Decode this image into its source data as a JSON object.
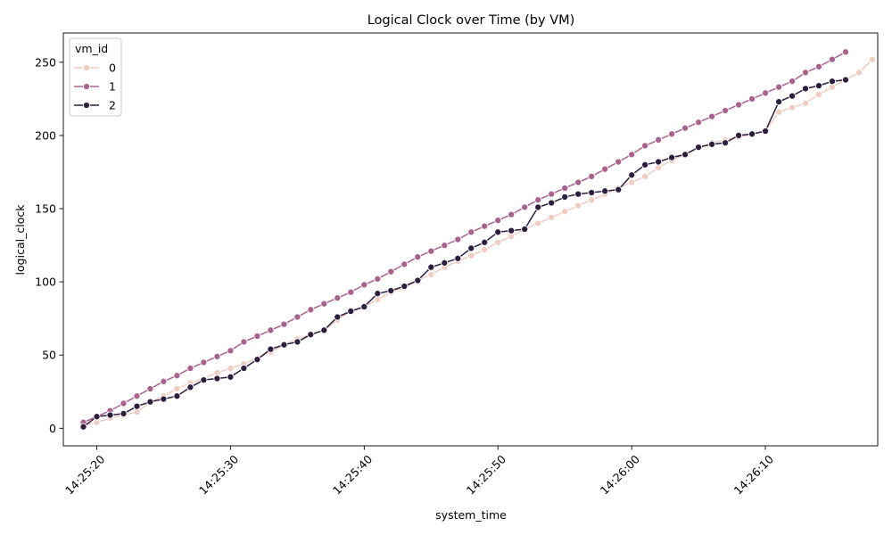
{
  "chart_data": {
    "type": "line",
    "title": "Logical Clock over Time (by VM)",
    "xlabel": "system_time",
    "ylabel": "logical_clock",
    "x_axis": "time",
    "x_ticks": [
      "14:25:20",
      "14:25:30",
      "14:25:40",
      "14:25:50",
      "14:26:00",
      "14:26:10"
    ],
    "x_range": [
      "14:25:17.5",
      "14:26:18.4"
    ],
    "ylim": [
      -12,
      270
    ],
    "y_ticks": [
      0,
      50,
      100,
      150,
      200,
      250
    ],
    "legend": {
      "title": "vm_id",
      "placement": "top-left"
    },
    "grid": false,
    "markers": true,
    "series": [
      {
        "name": "0",
        "color": "#f0cdc2",
        "points": [
          [
            "14:25:19.0",
            2
          ],
          [
            "14:25:20.0",
            4
          ],
          [
            "14:25:21.0",
            7
          ],
          [
            "14:25:22.0",
            9
          ],
          [
            "14:25:23.0",
            11
          ],
          [
            "14:25:24.0",
            18
          ],
          [
            "14:25:25.0",
            22
          ],
          [
            "14:25:26.0",
            27
          ],
          [
            "14:25:27.0",
            31
          ],
          [
            "14:25:28.0",
            34
          ],
          [
            "14:25:29.0",
            38
          ],
          [
            "14:25:30.0",
            41
          ],
          [
            "14:25:31.0",
            44
          ],
          [
            "14:25:32.0",
            48
          ],
          [
            "14:25:33.0",
            52
          ],
          [
            "14:25:34.0",
            57
          ],
          [
            "14:25:35.0",
            61
          ],
          [
            "14:25:36.0",
            64
          ],
          [
            "14:25:37.0",
            67
          ],
          [
            "14:25:38.0",
            74
          ],
          [
            "14:25:39.0",
            80
          ],
          [
            "14:25:40.0",
            83
          ],
          [
            "14:25:41.0",
            88
          ],
          [
            "14:25:42.0",
            93
          ],
          [
            "14:25:43.0",
            96
          ],
          [
            "14:25:44.0",
            101
          ],
          [
            "14:25:45.0",
            105
          ],
          [
            "14:25:46.0",
            110
          ],
          [
            "14:25:47.0",
            114
          ],
          [
            "14:25:48.0",
            118
          ],
          [
            "14:25:49.0",
            122
          ],
          [
            "14:25:50.0",
            127
          ],
          [
            "14:25:51.0",
            131
          ],
          [
            "14:25:52.0",
            136
          ],
          [
            "14:25:53.0",
            140
          ],
          [
            "14:25:54.0",
            144
          ],
          [
            "14:25:55.0",
            148
          ],
          [
            "14:25:56.0",
            152
          ],
          [
            "14:25:57.0",
            156
          ],
          [
            "14:25:58.0",
            160
          ],
          [
            "14:25:59.0",
            164
          ],
          [
            "14:26:00.0",
            168
          ],
          [
            "14:26:01.0",
            172
          ],
          [
            "14:26:02.0",
            178
          ],
          [
            "14:26:03.0",
            183
          ],
          [
            "14:26:04.0",
            187
          ],
          [
            "14:26:05.0",
            192
          ],
          [
            "14:26:06.0",
            195
          ],
          [
            "14:26:07.0",
            197
          ],
          [
            "14:26:08.0",
            199
          ],
          [
            "14:26:09.0",
            201
          ],
          [
            "14:26:10.0",
            203
          ],
          [
            "14:26:11.0",
            216
          ],
          [
            "14:26:12.0",
            219
          ],
          [
            "14:26:13.0",
            222
          ],
          [
            "14:26:14.0",
            228
          ],
          [
            "14:26:15.0",
            233
          ],
          [
            "14:26:16.0",
            238
          ],
          [
            "14:26:17.0",
            243
          ],
          [
            "14:26:18.0",
            252
          ]
        ]
      },
      {
        "name": "1",
        "color": "#a8628d",
        "points": [
          [
            "14:25:19.0",
            4
          ],
          [
            "14:25:20.0",
            8
          ],
          [
            "14:25:21.0",
            12
          ],
          [
            "14:25:22.0",
            17
          ],
          [
            "14:25:23.0",
            22
          ],
          [
            "14:25:24.0",
            27
          ],
          [
            "14:25:25.0",
            32
          ],
          [
            "14:25:26.0",
            36
          ],
          [
            "14:25:27.0",
            41
          ],
          [
            "14:25:28.0",
            45
          ],
          [
            "14:25:29.0",
            49
          ],
          [
            "14:25:30.0",
            53
          ],
          [
            "14:25:31.0",
            59
          ],
          [
            "14:25:32.0",
            63
          ],
          [
            "14:25:33.0",
            67
          ],
          [
            "14:25:34.0",
            71
          ],
          [
            "14:25:35.0",
            76
          ],
          [
            "14:25:36.0",
            81
          ],
          [
            "14:25:37.0",
            85
          ],
          [
            "14:25:38.0",
            89
          ],
          [
            "14:25:39.0",
            93
          ],
          [
            "14:25:40.0",
            98
          ],
          [
            "14:25:41.0",
            102
          ],
          [
            "14:25:42.0",
            107
          ],
          [
            "14:25:43.0",
            112
          ],
          [
            "14:25:44.0",
            117
          ],
          [
            "14:25:45.0",
            121
          ],
          [
            "14:25:46.0",
            125
          ],
          [
            "14:25:47.0",
            129
          ],
          [
            "14:25:48.0",
            134
          ],
          [
            "14:25:49.0",
            138
          ],
          [
            "14:25:50.0",
            142
          ],
          [
            "14:25:51.0",
            146
          ],
          [
            "14:25:52.0",
            151
          ],
          [
            "14:25:53.0",
            156
          ],
          [
            "14:25:54.0",
            160
          ],
          [
            "14:25:55.0",
            164
          ],
          [
            "14:25:56.0",
            168
          ],
          [
            "14:25:57.0",
            172
          ],
          [
            "14:25:58.0",
            177
          ],
          [
            "14:25:59.0",
            182
          ],
          [
            "14:26:00.0",
            187
          ],
          [
            "14:26:01.0",
            193
          ],
          [
            "14:26:02.0",
            197
          ],
          [
            "14:26:03.0",
            201
          ],
          [
            "14:26:04.0",
            205
          ],
          [
            "14:26:05.0",
            209
          ],
          [
            "14:26:06.0",
            213
          ],
          [
            "14:26:07.0",
            217
          ],
          [
            "14:26:08.0",
            221
          ],
          [
            "14:26:09.0",
            225
          ],
          [
            "14:26:10.0",
            229
          ],
          [
            "14:26:11.0",
            233
          ],
          [
            "14:26:12.0",
            237
          ],
          [
            "14:26:13.0",
            243
          ],
          [
            "14:26:14.0",
            247
          ],
          [
            "14:26:15.0",
            252
          ],
          [
            "14:26:16.0",
            257
          ]
        ]
      },
      {
        "name": "2",
        "color": "#2d1e3e",
        "points": [
          [
            "14:25:19.0",
            1
          ],
          [
            "14:25:20.0",
            8
          ],
          [
            "14:25:21.0",
            9
          ],
          [
            "14:25:22.0",
            10
          ],
          [
            "14:25:23.0",
            15
          ],
          [
            "14:25:24.0",
            18
          ],
          [
            "14:25:25.0",
            20
          ],
          [
            "14:25:26.0",
            22
          ],
          [
            "14:25:27.0",
            28
          ],
          [
            "14:25:28.0",
            33
          ],
          [
            "14:25:29.0",
            34
          ],
          [
            "14:25:30.0",
            35
          ],
          [
            "14:25:31.0",
            41
          ],
          [
            "14:25:32.0",
            47
          ],
          [
            "14:25:33.0",
            54
          ],
          [
            "14:25:34.0",
            57
          ],
          [
            "14:25:35.0",
            59
          ],
          [
            "14:25:36.0",
            64
          ],
          [
            "14:25:37.0",
            67
          ],
          [
            "14:25:38.0",
            76
          ],
          [
            "14:25:39.0",
            80
          ],
          [
            "14:25:40.0",
            83
          ],
          [
            "14:25:41.0",
            92
          ],
          [
            "14:25:42.0",
            94
          ],
          [
            "14:25:43.0",
            97
          ],
          [
            "14:25:44.0",
            101
          ],
          [
            "14:25:45.0",
            110
          ],
          [
            "14:25:46.0",
            113
          ],
          [
            "14:25:47.0",
            116
          ],
          [
            "14:25:48.0",
            123
          ],
          [
            "14:25:49.0",
            127
          ],
          [
            "14:25:50.0",
            134
          ],
          [
            "14:25:51.0",
            135
          ],
          [
            "14:25:52.0",
            136
          ],
          [
            "14:25:53.0",
            151
          ],
          [
            "14:25:54.0",
            154
          ],
          [
            "14:25:55.0",
            158
          ],
          [
            "14:25:56.0",
            160
          ],
          [
            "14:25:57.0",
            161
          ],
          [
            "14:25:58.0",
            162
          ],
          [
            "14:25:59.0",
            163
          ],
          [
            "14:26:00.0",
            173
          ],
          [
            "14:26:01.0",
            180
          ],
          [
            "14:26:02.0",
            182
          ],
          [
            "14:26:03.0",
            185
          ],
          [
            "14:26:04.0",
            187
          ],
          [
            "14:26:05.0",
            192
          ],
          [
            "14:26:06.0",
            194
          ],
          [
            "14:26:07.0",
            195
          ],
          [
            "14:26:08.0",
            200
          ],
          [
            "14:26:09.0",
            201
          ],
          [
            "14:26:10.0",
            203
          ],
          [
            "14:26:11.0",
            223
          ],
          [
            "14:26:12.0",
            227
          ],
          [
            "14:26:13.0",
            232
          ],
          [
            "14:26:14.0",
            234
          ],
          [
            "14:26:15.0",
            237
          ],
          [
            "14:26:16.0",
            238
          ]
        ]
      }
    ]
  }
}
